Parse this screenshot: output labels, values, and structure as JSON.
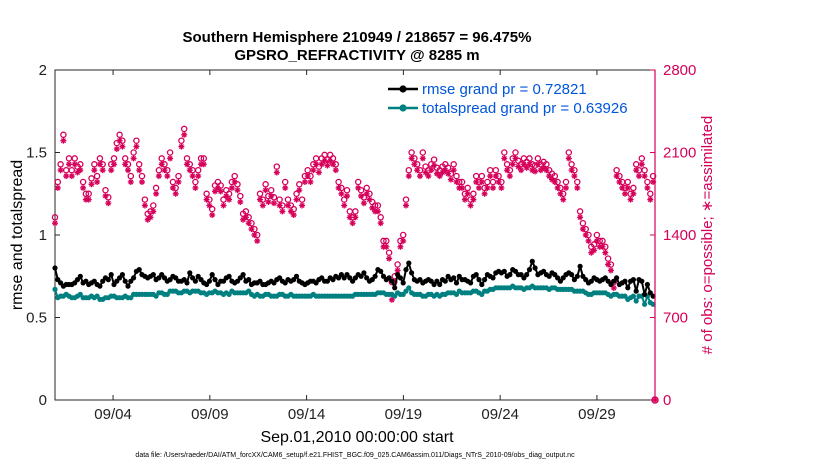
{
  "chart_data": {
    "type": "line",
    "title": "Southern Hemisphere 210949 / 218657 = 96.475%",
    "subtitle": "GPSRO_REFRACTIVITY @ 8285 m",
    "xlabel": "Sep.01,2010 00:00:00 start",
    "ylabel": "rmse and totalspread",
    "y2label": "# of obs: o=possible; ∗=assimilated",
    "footnote": "data file: /Users/raeder/DAI/ATM_forcXX/CAM6_setup/f.e21.FHIST_BGC.f09_025.CAM6assim.011/Diags_NTrS_2010-09/obs_diag_output.nc",
    "xlim": [
      1,
      32
    ],
    "ylim": [
      0,
      2
    ],
    "y2lim": [
      0,
      2800
    ],
    "xticks": [
      4,
      9,
      14,
      19,
      24,
      29
    ],
    "xtick_labels": [
      "09/04",
      "09/09",
      "09/14",
      "09/19",
      "09/24",
      "09/29"
    ],
    "yticks": [
      0,
      0.5,
      1,
      1.5,
      2
    ],
    "ytick_labels": [
      "0",
      "0.5",
      "1",
      "1.5",
      "2"
    ],
    "y2ticks": [
      0,
      700,
      1400,
      2100,
      2800
    ],
    "y2tick_labels": [
      "0",
      "700",
      "1400",
      "2100",
      "2800"
    ],
    "colors": {
      "rmse": "#000000",
      "spread": "#008080",
      "obs": "#d6005a",
      "legend_text": "#0055dd"
    },
    "legend": {
      "position": "top-right",
      "rmse_label": "rmse grand pr = 0.72821",
      "spread_label": "totalspread grand pr = 0.63926"
    },
    "series": [
      {
        "name": "rmse",
        "values": [
          0.8,
          0.73,
          0.71,
          0.69,
          0.7,
          0.7,
          0.7,
          0.71,
          0.73,
          0.75,
          0.71,
          0.72,
          0.7,
          0.71,
          0.72,
          0.7,
          0.69,
          0.72,
          0.74,
          0.73,
          0.76,
          0.7,
          0.72,
          0.74,
          0.76,
          0.72,
          0.69,
          0.72,
          0.74,
          0.78,
          0.79,
          0.76,
          0.75,
          0.74,
          0.75,
          0.76,
          0.73,
          0.74,
          0.76,
          0.74,
          0.72,
          0.73,
          0.75,
          0.74,
          0.72,
          0.72,
          0.73,
          0.71,
          0.77,
          0.74,
          0.72,
          0.75,
          0.73,
          0.71,
          0.7,
          0.72,
          0.76,
          0.73,
          0.7,
          0.72,
          0.72,
          0.74,
          0.75,
          0.72,
          0.71,
          0.72,
          0.74,
          0.76,
          0.72,
          0.73,
          0.7,
          0.71,
          0.71,
          0.72,
          0.7,
          0.7,
          0.71,
          0.72,
          0.71,
          0.73,
          0.74,
          0.72,
          0.71,
          0.73,
          0.72,
          0.73,
          0.75,
          0.72,
          0.71,
          0.7,
          0.71,
          0.72,
          0.72,
          0.71,
          0.73,
          0.74,
          0.72,
          0.72,
          0.74,
          0.73,
          0.75,
          0.74,
          0.76,
          0.74,
          0.76,
          0.74,
          0.72,
          0.74,
          0.76,
          0.75,
          0.77,
          0.74,
          0.72,
          0.73,
          0.75,
          0.79,
          0.78,
          0.75,
          0.73,
          0.74,
          0.72,
          0.68,
          0.76,
          0.74,
          0.71,
          0.79,
          0.83,
          0.77,
          0.73,
          0.72,
          0.73,
          0.71,
          0.72,
          0.73,
          0.72,
          0.7,
          0.72,
          0.7,
          0.73,
          0.72,
          0.75,
          0.73,
          0.74,
          0.71,
          0.75,
          0.73,
          0.73,
          0.72,
          0.71,
          0.75,
          0.76,
          0.73,
          0.7,
          0.73,
          0.76,
          0.75,
          0.74,
          0.77,
          0.78,
          0.77,
          0.78,
          0.75,
          0.76,
          0.79,
          0.78,
          0.76,
          0.76,
          0.74,
          0.76,
          0.79,
          0.84,
          0.8,
          0.76,
          0.77,
          0.78,
          0.76,
          0.75,
          0.77,
          0.76,
          0.74,
          0.72,
          0.74,
          0.76,
          0.77,
          0.76,
          0.73,
          0.75,
          0.81,
          0.75,
          0.73,
          0.71,
          0.72,
          0.74,
          0.73,
          0.72,
          0.73,
          0.74,
          0.72,
          0.7,
          0.72,
          0.74,
          0.7,
          0.71,
          0.72,
          0.68,
          0.72,
          0.73,
          0.66,
          0.73,
          0.72,
          0.64,
          0.7,
          0.65,
          0.63
        ]
      },
      {
        "name": "totalspread",
        "values": [
          0.67,
          0.62,
          0.63,
          0.63,
          0.64,
          0.63,
          0.62,
          0.62,
          0.63,
          0.64,
          0.62,
          0.62,
          0.62,
          0.63,
          0.62,
          0.63,
          0.61,
          0.61,
          0.62,
          0.62,
          0.63,
          0.63,
          0.62,
          0.62,
          0.62,
          0.63,
          0.62,
          0.62,
          0.64,
          0.64,
          0.64,
          0.64,
          0.64,
          0.64,
          0.64,
          0.64,
          0.63,
          0.65,
          0.65,
          0.64,
          0.64,
          0.66,
          0.66,
          0.66,
          0.65,
          0.65,
          0.66,
          0.66,
          0.65,
          0.66,
          0.66,
          0.66,
          0.65,
          0.65,
          0.64,
          0.65,
          0.65,
          0.66,
          0.65,
          0.65,
          0.64,
          0.65,
          0.64,
          0.66,
          0.65,
          0.65,
          0.65,
          0.65,
          0.65,
          0.66,
          0.64,
          0.63,
          0.64,
          0.63,
          0.63,
          0.64,
          0.64,
          0.63,
          0.63,
          0.63,
          0.64,
          0.64,
          0.63,
          0.63,
          0.64,
          0.63,
          0.63,
          0.63,
          0.63,
          0.63,
          0.63,
          0.63,
          0.64,
          0.63,
          0.63,
          0.63,
          0.63,
          0.63,
          0.63,
          0.63,
          0.63,
          0.63,
          0.63,
          0.63,
          0.63,
          0.63,
          0.63,
          0.64,
          0.64,
          0.64,
          0.64,
          0.64,
          0.64,
          0.64,
          0.64,
          0.65,
          0.65,
          0.65,
          0.64,
          0.64,
          0.64,
          0.63,
          0.65,
          0.64,
          0.64,
          0.66,
          0.68,
          0.65,
          0.64,
          0.64,
          0.64,
          0.63,
          0.63,
          0.64,
          0.64,
          0.63,
          0.64,
          0.63,
          0.64,
          0.64,
          0.65,
          0.65,
          0.65,
          0.64,
          0.66,
          0.65,
          0.65,
          0.65,
          0.65,
          0.66,
          0.66,
          0.65,
          0.64,
          0.66,
          0.66,
          0.67,
          0.67,
          0.68,
          0.68,
          0.68,
          0.68,
          0.68,
          0.68,
          0.69,
          0.68,
          0.68,
          0.68,
          0.67,
          0.68,
          0.68,
          0.69,
          0.68,
          0.68,
          0.68,
          0.68,
          0.68,
          0.67,
          0.68,
          0.68,
          0.67,
          0.67,
          0.67,
          0.67,
          0.67,
          0.67,
          0.66,
          0.66,
          0.66,
          0.66,
          0.65,
          0.64,
          0.64,
          0.65,
          0.65,
          0.65,
          0.65,
          0.65,
          0.64,
          0.63,
          0.64,
          0.64,
          0.63,
          0.63,
          0.63,
          0.61,
          0.62,
          0.63,
          0.6,
          0.63,
          0.63,
          0.58,
          0.63,
          0.59,
          0.58
        ]
      },
      {
        "name": "obs_possible",
        "values": [
          1550,
          1850,
          2000,
          2250,
          1950,
          2050,
          1950,
          2050,
          1980,
          2000,
          1850,
          1750,
          1750,
          1880,
          2000,
          1900,
          2050,
          2000,
          1780,
          1720,
          2000,
          2050,
          2180,
          2250,
          2200,
          2050,
          2000,
          1900,
          2100,
          2200,
          2000,
          1900,
          1700,
          1580,
          1600,
          1650,
          1800,
          1950,
          2050,
          2000,
          1950,
          2100,
          1850,
          1800,
          1900,
          2200,
          2300,
          2050,
          2000,
          1950,
          1850,
          1950,
          2050,
          2050,
          1750,
          1700,
          1620,
          1820,
          1850,
          1820,
          1700,
          1780,
          1750,
          1850,
          1900,
          1830,
          1730,
          1580,
          1600,
          1550,
          1500,
          1450,
          1400,
          1750,
          1700,
          1830,
          1730,
          1780,
          1720,
          1980,
          1700,
          1650,
          1850,
          1700,
          1650,
          1620,
          1750,
          1830,
          1700,
          1900,
          1950,
          1900,
          2000,
          2050,
          1980,
          2050,
          2080,
          2040,
          2080,
          2050,
          2000,
          1850,
          1800,
          1700,
          1780,
          1600,
          1550,
          1600,
          1850,
          1780,
          1720,
          1800,
          1750,
          1680,
          1650,
          1650,
          1550,
          1350,
          1350,
          1250,
          1000,
          1050,
          1150,
          1350,
          1400,
          1700,
          1950,
          2100,
          2050,
          2000,
          1950,
          2100,
          1980,
          1950,
          2000,
          2040,
          1970,
          1950,
          1980,
          2000,
          1970,
          1920,
          2000,
          1900,
          1850,
          1850,
          1750,
          1800,
          1700,
          1750,
          1900,
          1850,
          1900,
          1800,
          1850,
          1950,
          1850,
          1950,
          1900,
          1850,
          2100,
          2000,
          1950,
          2050,
          2100,
          2030,
          2000,
          2050,
          2020,
          2050,
          2000,
          1990,
          2050,
          2000,
          2020,
          2000,
          1950,
          1920,
          1900,
          1850,
          1800,
          1750,
          1850,
          2100,
          2000,
          1950,
          1850,
          1600,
          1500,
          1450,
          1400,
          1300,
          1320,
          1400,
          1350,
          1350,
          1300,
          1200,
          1150,
          1000,
          1950,
          1900,
          1850,
          1800,
          1850,
          1750,
          1800,
          2000,
          1950,
          2050,
          1950,
          1850,
          1750,
          1900
        ]
      },
      {
        "name": "obs_assimilated",
        "values": [
          1500,
          1800,
          1950,
          2200,
          1900,
          2000,
          1900,
          2000,
          1930,
          1950,
          1800,
          1700,
          1700,
          1830,
          1950,
          1850,
          2000,
          1950,
          1730,
          1670,
          1950,
          2000,
          2130,
          2200,
          2150,
          2000,
          1950,
          1850,
          2050,
          2150,
          1950,
          1850,
          1650,
          1530,
          1550,
          1600,
          1750,
          1900,
          2000,
          1950,
          1900,
          2050,
          1800,
          1750,
          1850,
          2150,
          2250,
          2000,
          1950,
          1900,
          1800,
          1900,
          2000,
          2000,
          1700,
          1650,
          1570,
          1770,
          1800,
          1770,
          1650,
          1730,
          1700,
          1800,
          1850,
          1780,
          1680,
          1530,
          1550,
          1500,
          1450,
          1400,
          1350,
          1700,
          1650,
          1780,
          1680,
          1730,
          1670,
          1930,
          1650,
          1600,
          1800,
          1650,
          1600,
          1570,
          1700,
          1780,
          1650,
          1850,
          1900,
          1850,
          1950,
          2000,
          1930,
          2000,
          2030,
          1990,
          2030,
          2000,
          1950,
          1800,
          1750,
          1650,
          1730,
          1550,
          1500,
          1550,
          1800,
          1730,
          1670,
          1750,
          1700,
          1630,
          1600,
          1600,
          1500,
          1300,
          1300,
          1200,
          850,
          1000,
          1100,
          1300,
          1350,
          1650,
          1900,
          2050,
          2000,
          1950,
          1900,
          2050,
          1930,
          1900,
          1950,
          1990,
          1920,
          1900,
          1930,
          1950,
          1920,
          1870,
          1950,
          1850,
          1800,
          1800,
          1700,
          1750,
          1650,
          1700,
          1850,
          1800,
          1850,
          1750,
          1800,
          1900,
          1800,
          1900,
          1850,
          1800,
          2050,
          1950,
          1900,
          2000,
          2050,
          1980,
          1950,
          2000,
          1970,
          2000,
          1950,
          1940,
          2000,
          1950,
          1970,
          1950,
          1900,
          1870,
          1850,
          1800,
          1750,
          1700,
          1800,
          2050,
          1950,
          1900,
          1800,
          1550,
          1450,
          1400,
          1350,
          1250,
          1270,
          1350,
          1300,
          1300,
          1250,
          1150,
          1100,
          950,
          1900,
          1850,
          1800,
          1750,
          1800,
          1700,
          1750,
          1950,
          1900,
          2000,
          1900,
          1800,
          1700,
          1850
        ]
      }
    ],
    "extra_points": [
      {
        "name": "obs_possible_final",
        "x": 32,
        "value": 0
      },
      {
        "name": "obs_assimilated_final",
        "x": 32,
        "value": 0
      }
    ]
  }
}
